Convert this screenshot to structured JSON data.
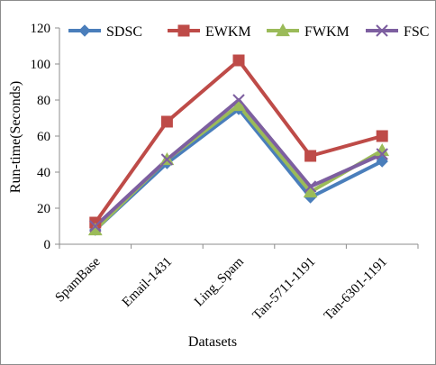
{
  "chart_data": {
    "type": "line",
    "title": "",
    "xlabel": "Datasets",
    "ylabel": "Run-time(Seconds)",
    "ylim": [
      0,
      120
    ],
    "yticks": [
      0,
      20,
      40,
      60,
      80,
      100,
      120
    ],
    "grid": false,
    "legend_position": "top",
    "categories": [
      "SpamBase",
      "Email-1431",
      "Ling_Spam",
      "Tan-5711-1191",
      "Tan-6301-1191"
    ],
    "series": [
      {
        "name": "SDSC",
        "color": "#4a7ebb",
        "marker": "diamond",
        "values": [
          8,
          45,
          75,
          26,
          46
        ]
      },
      {
        "name": "EWKM",
        "color": "#be4b48",
        "marker": "square",
        "values": [
          12,
          68,
          102,
          49,
          60
        ]
      },
      {
        "name": "FWKM",
        "color": "#9bbb59",
        "marker": "triangle",
        "values": [
          8,
          47,
          77,
          29,
          52
        ]
      },
      {
        "name": "FSC",
        "color": "#7d5fa0",
        "marker": "x",
        "values": [
          10,
          47,
          80,
          32,
          50
        ]
      }
    ]
  }
}
